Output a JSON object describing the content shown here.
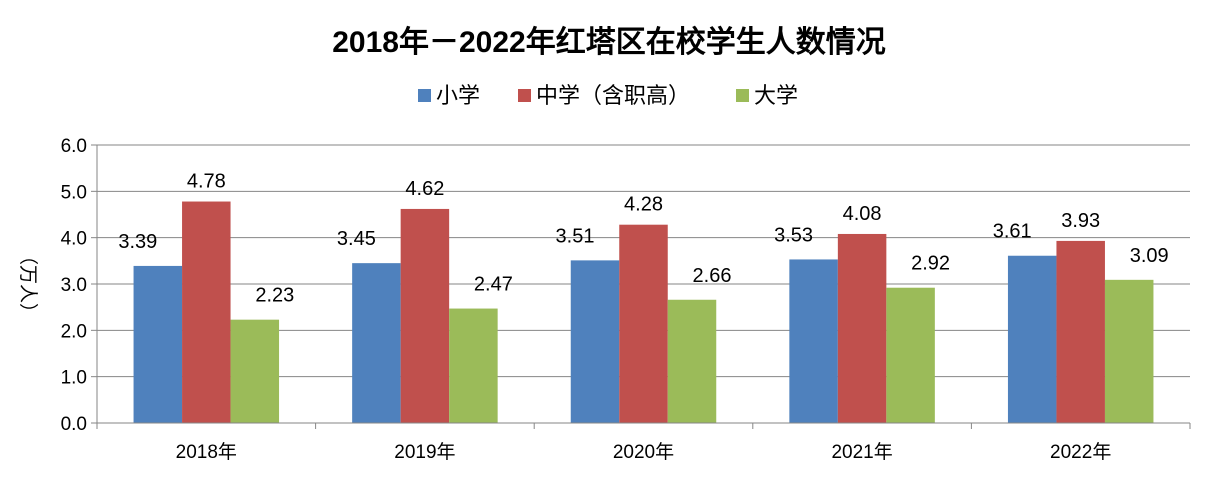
{
  "chart_data": {
    "type": "bar",
    "title": "2018年－2022年红塔区在校学生人数情况",
    "ylabel": "（万人）",
    "xlabel": "",
    "categories": [
      "2018年",
      "2019年",
      "2020年",
      "2021年",
      "2022年"
    ],
    "series": [
      {
        "name": "小学",
        "color": "#4F81BD",
        "values": [
          3.39,
          3.45,
          3.51,
          3.53,
          3.61
        ]
      },
      {
        "name": "中学（含职高）",
        "color": "#C0504D",
        "values": [
          4.78,
          4.62,
          4.28,
          4.08,
          3.93
        ]
      },
      {
        "name": "大学",
        "color": "#9BBB59",
        "values": [
          2.23,
          2.47,
          2.66,
          2.92,
          3.09
        ]
      }
    ],
    "ylim": [
      0,
      6
    ],
    "yticks": [
      "0.0",
      "1.0",
      "2.0",
      "3.0",
      "4.0",
      "5.0",
      "6.0"
    ],
    "grid": true,
    "legend_position": "top"
  }
}
